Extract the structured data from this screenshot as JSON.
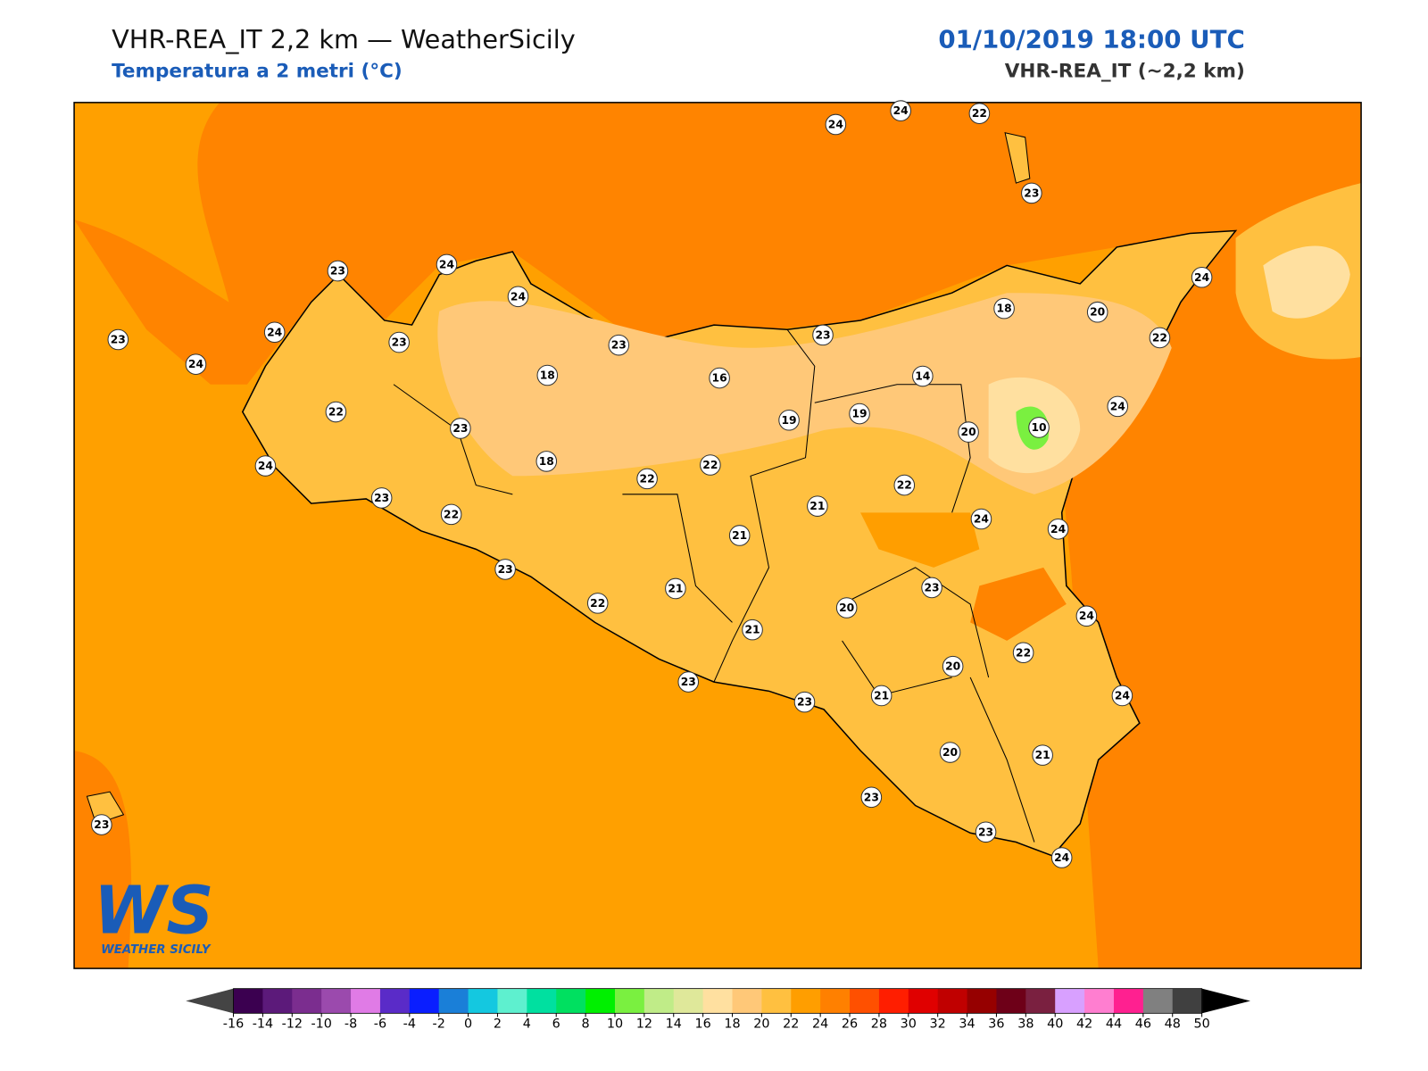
{
  "header": {
    "title": "VHR-REA_IT 2,2 km — WeatherSicily",
    "subtitle": "Temperatura a 2 metri (°C)",
    "datetime": "01/10/2019 18:00 UTC",
    "model": "VHR-REA_IT (~2,2 km)"
  },
  "stations": [
    24,
    24,
    22,
    23,
    23,
    24,
    24,
    24,
    18,
    20,
    23,
    24,
    23,
    23,
    23,
    22,
    24,
    18,
    16,
    14,
    22,
    23,
    19,
    19,
    20,
    10,
    24,
    24,
    18,
    22,
    22,
    22,
    23,
    22,
    21,
    24,
    24,
    21,
    23,
    21,
    23,
    22,
    20,
    24,
    21,
    22,
    20,
    23,
    21,
    23,
    24,
    21,
    20,
    23,
    23,
    23,
    24
  ],
  "logo": {
    "mark": "WS",
    "name": "WEATHER SICILY"
  },
  "colorbar": {
    "ticks": [
      -16,
      -14,
      -12,
      -10,
      -8,
      -6,
      -4,
      -2,
      0,
      2,
      4,
      6,
      8,
      10,
      12,
      14,
      16,
      18,
      20,
      22,
      24,
      26,
      28,
      30,
      32,
      34,
      36,
      38,
      40,
      42,
      44,
      46,
      48,
      50
    ],
    "colors": [
      "#3b0050",
      "#5c1a7a",
      "#7b2d8f",
      "#9b4aad",
      "#e07be6",
      "#5a2bc8",
      "#0a1eff",
      "#1a7fd8",
      "#14c8e0",
      "#5ef0cf",
      "#00e0a0",
      "#00e060",
      "#00f000",
      "#7af040",
      "#c0ec88",
      "#dfe89a",
      "#ffe0a0",
      "#ffc878",
      "#ffc040",
      "#ff9e00",
      "#ff8000",
      "#ff5000",
      "#ff1e00",
      "#e00000",
      "#c00000",
      "#960000",
      "#6e0018",
      "#7a2040",
      "#d8a0ff",
      "#ff7ed0",
      "#ff2090",
      "#808080",
      "#404040"
    ],
    "under": "#444444",
    "over": "#000000"
  }
}
